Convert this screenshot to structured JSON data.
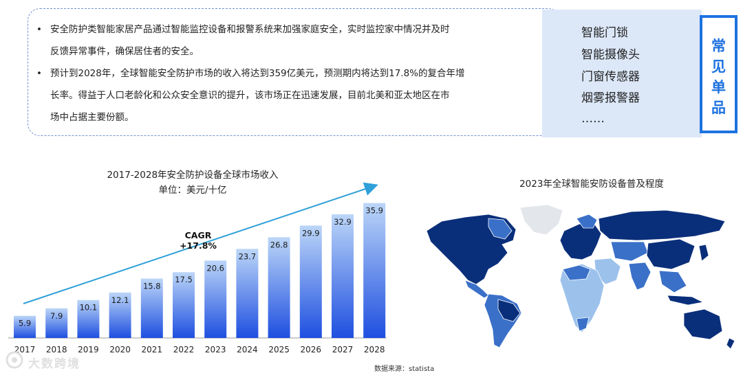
{
  "summary": {
    "bullets": [
      {
        "line1": "安全防护类智能家居产品通过智能监控设备和报警系统来加强家庭安全，实时监控家中情况并及时",
        "line2": "反馈异常事件，确保居住者的安全。"
      },
      {
        "line1": "预计到2028年，全球智能安全防护市场的收入将达到359亿美元，预测期内将达到17.8%的复合年增",
        "line2": "长率。得益于人口老龄化和公众安全意识的提升，该市场正在迅速发展，目前北美和亚太地区在市",
        "line3": "场中占据主要份额。"
      }
    ]
  },
  "products": {
    "tag": [
      "常",
      "见",
      "单",
      "品"
    ],
    "items": [
      "智能门锁",
      "智能摄像头",
      "门窗传感器",
      "烟雾报警器",
      "……"
    ]
  },
  "chart_data": [
    {
      "type": "bar",
      "title": "2017-2028年安全防护设备全球市场收入",
      "subtitle": "单位：美元/十亿",
      "categories": [
        "2017",
        "2018",
        "2019",
        "2020",
        "2021",
        "2022",
        "2023",
        "2024",
        "2025",
        "2026",
        "2027",
        "2028"
      ],
      "values": [
        5.9,
        7.9,
        10.1,
        12.1,
        15.8,
        17.5,
        20.6,
        23.7,
        26.8,
        29.9,
        32.9,
        35.9
      ],
      "data_labels": [
        "5.9",
        "7.9",
        "10.1",
        "12.1",
        "15.8",
        "17.5",
        "20.6",
        "23.7",
        "26.8",
        "29.9",
        "32.9",
        "35.9"
      ],
      "ylim": [
        0,
        36
      ],
      "annotation": {
        "line1": "CAGR",
        "line2": "+17.8%"
      },
      "bar_gradient": [
        "#1e4fe0",
        "#bcd6f8"
      ],
      "arrow_color": "#2fa0d8",
      "grid": false
    },
    {
      "type": "map",
      "title": "2023年全球智能安防设备普及程度",
      "colors": {
        "high": "#0a2f7a",
        "mid": "#3a70c8",
        "low": "#9cc2ec",
        "none": "#e3e6ea"
      }
    }
  ],
  "source": "数据来源：statista",
  "watermark": "大数跨境"
}
